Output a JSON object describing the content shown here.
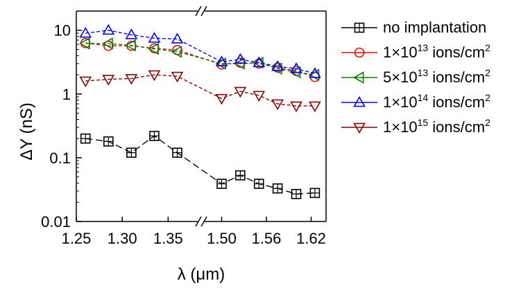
{
  "chart_data": {
    "type": "line",
    "title": "",
    "xlabel": "λ (μm)",
    "ylabel": "ΔY (nS)",
    "x_scale": "broken",
    "x_segments": [
      {
        "range": [
          1.25,
          1.38
        ],
        "ticks": [
          "1.25",
          "1.30",
          "1.35"
        ]
      },
      {
        "range": [
          1.48,
          1.64
        ],
        "ticks": [
          "1.50",
          "1.56",
          "1.62"
        ]
      }
    ],
    "y_scale": "log",
    "ylim": [
      0.01,
      20
    ],
    "y_ticks": [
      "0.01",
      "0.1",
      "1",
      "10"
    ],
    "grid": false,
    "legend_position": "outside-right",
    "x": [
      1.26,
      1.285,
      1.31,
      1.335,
      1.36,
      1.5,
      1.525,
      1.55,
      1.575,
      1.6,
      1.625
    ],
    "series": [
      {
        "name": "no implantation",
        "color": "#000000",
        "marker": "square",
        "values": [
          0.2,
          0.18,
          0.12,
          0.22,
          0.12,
          0.039,
          0.053,
          0.039,
          0.033,
          0.027,
          0.028
        ]
      },
      {
        "name": "1×10¹³ ions/cm²",
        "label_parts": {
          "base": "1×10",
          "exp": "13",
          "unit": " ions/cm",
          "unit_exp": "2"
        },
        "color": "#ff0000",
        "marker": "circle",
        "values": [
          6.3,
          5.7,
          5.7,
          5.2,
          4.9,
          2.9,
          3.1,
          3.0,
          2.6,
          2.3,
          1.85
        ]
      },
      {
        "name": "5×10¹³ ions/cm²",
        "label_parts": {
          "base": "5×10",
          "exp": "13",
          "unit": " ions/cm",
          "unit_exp": "2"
        },
        "color": "#008000",
        "marker": "triangle-left",
        "values": [
          6.2,
          6.2,
          5.8,
          5.1,
          4.6,
          3.0,
          3.0,
          3.1,
          2.5,
          2.2,
          2.0
        ]
      },
      {
        "name": "1×10¹⁴ ions/cm²",
        "label_parts": {
          "base": "1×10",
          "exp": "14",
          "unit": " ions/cm",
          "unit_exp": "2"
        },
        "color": "#0000ff",
        "marker": "triangle-up",
        "values": [
          9.0,
          10.0,
          8.5,
          7.5,
          7.3,
          3.2,
          3.5,
          3.1,
          2.7,
          2.5,
          2.1
        ]
      },
      {
        "name": "1×10¹⁵ ions/cm²",
        "label_parts": {
          "base": "1×10",
          "exp": "15",
          "unit": " ions/cm",
          "unit_exp": "2"
        },
        "color": "#8b0000",
        "marker": "triangle-down",
        "values": [
          1.6,
          1.7,
          1.75,
          2.0,
          1.9,
          0.85,
          1.1,
          0.95,
          0.7,
          0.65,
          0.65
        ]
      }
    ]
  }
}
